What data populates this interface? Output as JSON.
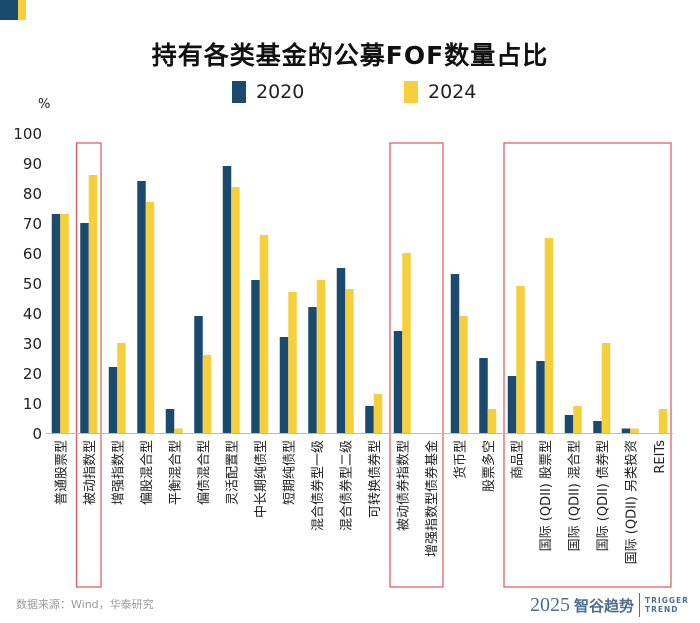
{
  "chart_data": {
    "type": "bar",
    "title": "持有各类基金的公募FOF数量占比",
    "ylabel": "%",
    "ylim": [
      0,
      100
    ],
    "yticks": [
      0,
      10,
      20,
      30,
      40,
      50,
      60,
      70,
      80,
      90,
      100
    ],
    "grid": false,
    "legend_position": "top-center",
    "categories": [
      "普通股票型",
      "被动指数型",
      "增强指数型",
      "偏股混合型",
      "平衡混合型",
      "偏债混合型",
      "灵活配置型",
      "中长期纯债型",
      "短期纯债型",
      "混合债券型一级",
      "混合债券型二级",
      "可转换债券型",
      "被动债券指数型",
      "增强指数型债券基金",
      "货币型",
      "股票多空",
      "商品型",
      "国际 (QDII) 股票型",
      "国际 (QDII) 混合型",
      "国际 (QDII) 债券型",
      "国际 (QDII) 另类投资",
      "REITs"
    ],
    "series": [
      {
        "name": "2020",
        "color": "#1a4a6e",
        "values": [
          73,
          70,
          22,
          84,
          8,
          39,
          89,
          51,
          32,
          42,
          55,
          9,
          34,
          0,
          53,
          25,
          19,
          24,
          6,
          4,
          1.5,
          0
        ]
      },
      {
        "name": "2024",
        "color": "#f5cf3c",
        "values": [
          73,
          86,
          30,
          77,
          1.5,
          26,
          82,
          66,
          47,
          51,
          48,
          13,
          60,
          0,
          39,
          8,
          49,
          65,
          9,
          30,
          1.5,
          8
        ]
      }
    ],
    "highlight_groups": [
      [
        1,
        1
      ],
      [
        12,
        13
      ],
      [
        16,
        21
      ]
    ],
    "highlight_color": "#e05555"
  },
  "source_text": "数据来源：Wind，华泰研究",
  "brand": {
    "year": "2025",
    "name": "智谷趋势",
    "en_line1": "TRIGGER",
    "en_line2": "TREND"
  }
}
